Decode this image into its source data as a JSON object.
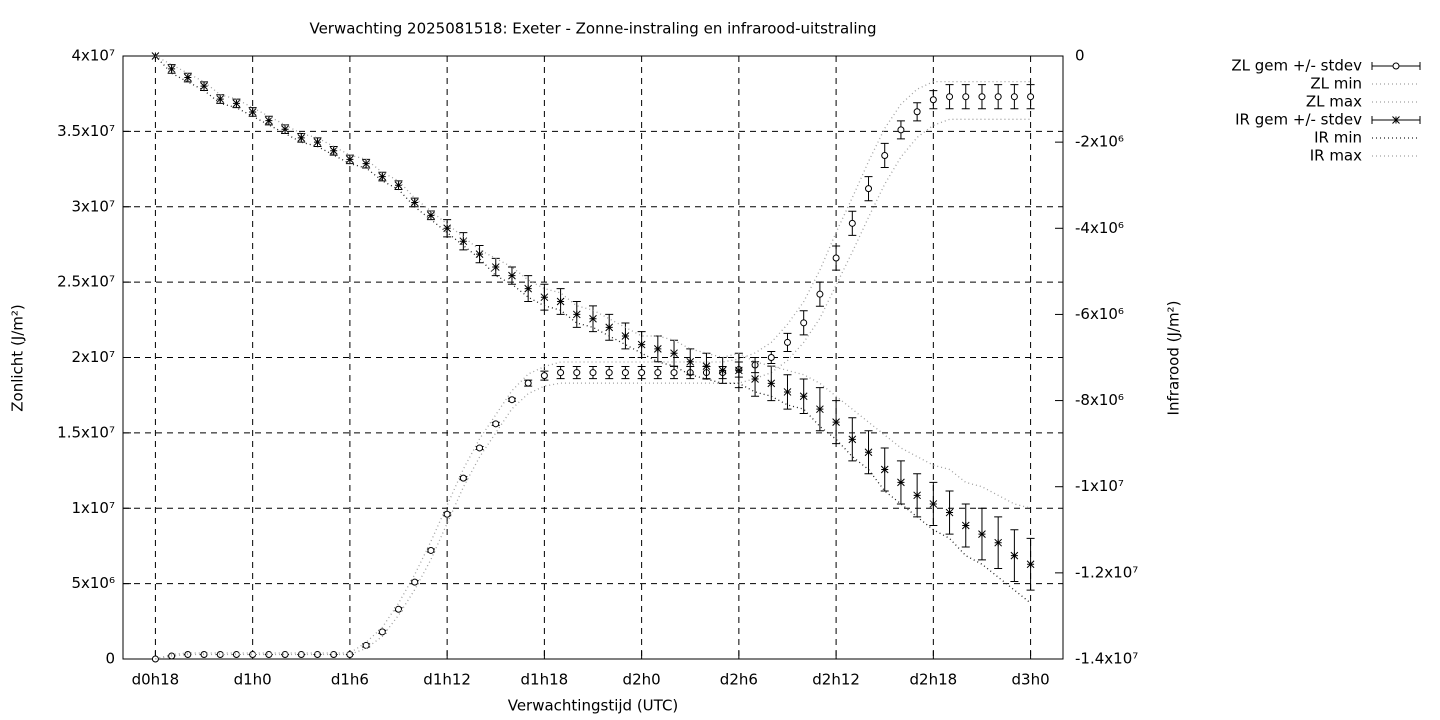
{
  "chart_data": {
    "type": "errorbar",
    "title": "Verwachting 2025081518: Exeter - Zonne-instraling en infrarood-uitstraling",
    "xlabel": "Verwachtingstijd (UTC)",
    "ylabel": "Zonlicht (J/m²)",
    "y2label": "Infrarood (J/m²)",
    "x": [
      0,
      1,
      2,
      3,
      4,
      5,
      6,
      7,
      8,
      9,
      10,
      11,
      12,
      13,
      14,
      15,
      16,
      17,
      18,
      19,
      20,
      21,
      22,
      23,
      24,
      25,
      26,
      27,
      28,
      29,
      30,
      31,
      32,
      33,
      34,
      35,
      36,
      37,
      38,
      39,
      40,
      41,
      42,
      43,
      44,
      45,
      46,
      47,
      48,
      49,
      50,
      51,
      52,
      53,
      54
    ],
    "xlim": [
      -2,
      56
    ],
    "xticks": [
      {
        "value": 0,
        "label": "d0h18"
      },
      {
        "value": 6,
        "label": "d1h0"
      },
      {
        "value": 12,
        "label": "d1h6"
      },
      {
        "value": 18,
        "label": "d1h12"
      },
      {
        "value": 24,
        "label": "d1h18"
      },
      {
        "value": 30,
        "label": "d2h0"
      },
      {
        "value": 36,
        "label": "d2h6"
      },
      {
        "value": 42,
        "label": "d2h12"
      },
      {
        "value": 48,
        "label": "d2h18"
      },
      {
        "value": 54,
        "label": "d3h0"
      }
    ],
    "ylim": [
      0,
      40000000
    ],
    "yticks": [
      0,
      {
        "value": 5000000,
        "label": "5x10⁶"
      },
      {
        "value": 10000000,
        "label": "1x10⁷"
      },
      {
        "value": 15000000,
        "label": "1.5x10⁷"
      },
      {
        "value": 20000000,
        "label": "2x10⁷"
      },
      {
        "value": 25000000,
        "label": "2.5x10⁷"
      },
      {
        "value": 30000000,
        "label": "3x10⁷"
      },
      {
        "value": 35000000,
        "label": "3.5x10⁷"
      },
      {
        "value": 40000000,
        "label": "4x10⁷"
      }
    ],
    "y2lim": [
      -14000000,
      0
    ],
    "y2ticks": [
      {
        "value": -14000000,
        "label": "-1.4x10⁷"
      },
      {
        "value": -12000000,
        "label": "-1.2x10⁷"
      },
      {
        "value": -10000000,
        "label": "-1x10⁷"
      },
      {
        "value": -8000000,
        "label": "-8x10⁶"
      },
      {
        "value": -6000000,
        "label": "-6x10⁶"
      },
      {
        "value": -4000000,
        "label": "-4x10⁶"
      },
      {
        "value": -2000000,
        "label": "-2x10⁶"
      },
      0
    ],
    "grid": true,
    "legend": "outside-top-right",
    "series": [
      {
        "name": "ZL gem +/- stdev",
        "color": "#000000",
        "style": "errorbars",
        "marker": "circle",
        "values": [
          0,
          200000.0,
          300000.0,
          300000.0,
          300000.0,
          300000.0,
          300000.0,
          300000.0,
          300000.0,
          300000.0,
          300000.0,
          300000.0,
          300000.0,
          900000.0,
          1800000.0,
          3300000.0,
          5100000.0,
          7200000.0,
          9600000.0,
          12000000.0,
          14000000.0,
          15600000.0,
          17200000.0,
          18300000.0,
          18800000.0,
          19000000.0,
          19000000.0,
          19000000.0,
          19000000.0,
          19000000.0,
          19000000.0,
          19000000.0,
          19000000.0,
          19000000.0,
          19000000.0,
          19000000.0,
          19200000.0,
          19500000.0,
          20000000.0,
          21000000.0,
          22300000.0,
          24200000.0,
          26600000.0,
          28900000.0,
          31200000.0,
          33400000.0,
          35100000.0,
          36300000.0,
          37100000.0,
          37300000.0,
          37300000.0,
          37300000.0,
          37300000.0,
          37300000.0,
          37300000.0
        ],
        "errors": [
          0,
          0,
          0,
          0,
          0,
          0,
          0,
          0,
          0,
          0,
          0,
          0,
          0,
          100000.0,
          100000.0,
          100000.0,
          100000.0,
          100000.0,
          100000.0,
          100000.0,
          100000.0,
          100000.0,
          100000.0,
          200000.0,
          300000.0,
          400000.0,
          400000.0,
          400000.0,
          400000.0,
          400000.0,
          400000.0,
          400000.0,
          400000.0,
          400000.0,
          400000.0,
          400000.0,
          500000.0,
          500000.0,
          400000.0,
          600000.0,
          800000.0,
          800000.0,
          800000.0,
          800000.0,
          800000.0,
          800000.0,
          600000.0,
          600000.0,
          600000.0,
          800000.0,
          800000.0,
          800000.0,
          800000.0,
          800000.0,
          800000.0
        ]
      },
      {
        "name": "ZL min",
        "color": "#a0a0a0",
        "style": "dotted",
        "values": [
          0,
          200000.0,
          300000.0,
          300000.0,
          300000.0,
          300000.0,
          300000.0,
          300000.0,
          300000.0,
          300000.0,
          300000.0,
          300000.0,
          300000.0,
          700000.0,
          1500000.0,
          2900000.0,
          4600000.0,
          6600000.0,
          9000000.0,
          11400000.0,
          13400000.0,
          15000000.0,
          16600000.0,
          17600000.0,
          18100000.0,
          18300000.0,
          18300000.0,
          18300000.0,
          18300000.0,
          18300000.0,
          18300000.0,
          18300000.0,
          18300000.0,
          18300000.0,
          18300000.0,
          18300000.0,
          18300000.0,
          18600000.0,
          19000000.0,
          19800000.0,
          21000000.0,
          22600000.0,
          24800000.0,
          27000000.0,
          29300000.0,
          31500000.0,
          33300000.0,
          34600000.0,
          35400000.0,
          35800000.0,
          35800000.0,
          35800000.0,
          35800000.0,
          35800000.0,
          35800000.0
        ]
      },
      {
        "name": "ZL max",
        "color": "#a0a0a0",
        "style": "dotted",
        "values": [
          0,
          300000.0,
          400000.0,
          400000.0,
          400000.0,
          400000.0,
          400000.0,
          400000.0,
          400000.0,
          400000.0,
          400000.0,
          400000.0,
          400000.0,
          1100000.0,
          2100000.0,
          3700000.0,
          5600000.0,
          7800000.0,
          10200000.0,
          12600000.0,
          14600000.0,
          16200000.0,
          17800000.0,
          18900000.0,
          19400000.0,
          19700000.0,
          19700000.0,
          19700000.0,
          19700000.0,
          19700000.0,
          19700000.0,
          19700000.0,
          19700000.0,
          19700000.0,
          19700000.0,
          19700000.0,
          19900000.0,
          20300000.0,
          21000000.0,
          22200000.0,
          23700000.0,
          25800000.0,
          28300000.0,
          30600000.0,
          33000000.0,
          35200000.0,
          36800000.0,
          37800000.0,
          38300000.0,
          38300000.0,
          38300000.0,
          38300000.0,
          38300000.0,
          38300000.0,
          38300000.0
        ]
      },
      {
        "name": "IR gem +/- stdev",
        "color": "#000000",
        "style": "errorbars",
        "marker": "asterisk",
        "axis": "y2",
        "values": [
          0,
          -300000.0,
          -500000.0,
          -700000.0,
          -1000000.0,
          -1100000.0,
          -1300000.0,
          -1500000.0,
          -1700000.0,
          -1900000.0,
          -2000000.0,
          -2200000.0,
          -2400000.0,
          -2500000.0,
          -2800000.0,
          -3000000.0,
          -3400000.0,
          -3700000.0,
          -4000000.0,
          -4300000.0,
          -4600000.0,
          -4900000.0,
          -5100000.0,
          -5400000.0,
          -5600000.0,
          -5700000.0,
          -6000000.0,
          -6100000.0,
          -6300000.0,
          -6500000.0,
          -6700000.0,
          -6800000.0,
          -6900000.0,
          -7100000.0,
          -7200000.0,
          -7300000.0,
          -7300000.0,
          -7500000.0,
          -7600000.0,
          -7800000.0,
          -7900000.0,
          -8200000.0,
          -8500000.0,
          -8900000.0,
          -9200000.0,
          -9600000.0,
          -9900000.0,
          -10200000.0,
          -10400000.0,
          -10600000.0,
          -10900000.0,
          -11100000.0,
          -11300000.0,
          -11600000.0,
          -11800000.0
        ],
        "errors": [
          0,
          100000.0,
          100000.0,
          100000.0,
          100000.0,
          100000.0,
          100000.0,
          100000.0,
          100000.0,
          100000.0,
          100000.0,
          100000.0,
          100000.0,
          100000.0,
          100000.0,
          100000.0,
          100000.0,
          100000.0,
          200000.0,
          200000.0,
          200000.0,
          200000.0,
          200000.0,
          300000.0,
          300000.0,
          300000.0,
          300000.0,
          300000.0,
          300000.0,
          300000.0,
          300000.0,
          300000.0,
          300000.0,
          300000.0,
          300000.0,
          300000.0,
          400000.0,
          400000.0,
          400000.0,
          400000.0,
          400000.0,
          500000.0,
          500000.0,
          500000.0,
          500000.0,
          500000.0,
          500000.0,
          500000.0,
          500000.0,
          500000.0,
          500000.0,
          600000.0,
          600000.0,
          600000.0,
          600000.0
        ]
      },
      {
        "name": "IR min",
        "color": "#202020",
        "style": "dotted",
        "values": [
          0,
          -400000.0,
          -600000.0,
          -800000.0,
          -1100000.0,
          -1200000.0,
          -1400000.0,
          -1600000.0,
          -1800000.0,
          -2000000.0,
          -2100000.0,
          -2300000.0,
          -2500000.0,
          -2600000.0,
          -2900000.0,
          -3100000.0,
          -3500000.0,
          -3800000.0,
          -4100000.0,
          -4400000.0,
          -4700000.0,
          -5100000.0,
          -5300000.0,
          -5600000.0,
          -5800000.0,
          -5900000.0,
          -6200000.0,
          -6300000.0,
          -6500000.0,
          -6700000.0,
          -6900000.0,
          -7100000.0,
          -7200000.0,
          -7400000.0,
          -7500000.0,
          -7600000.0,
          -7600000.0,
          -7800000.0,
          -7900000.0,
          -8100000.0,
          -8200000.0,
          -8600000.0,
          -8900000.0,
          -9300000.0,
          -9600000.0,
          -10100000.0,
          -10400000.0,
          -10700000.0,
          -11000000.0,
          -11200000.0,
          -11600000.0,
          -11800000.0,
          -12100000.0,
          -12400000.0,
          -12700000.0
        ],
        "axis": "y2"
      },
      {
        "name": "IR max",
        "color": "#a0a0a0",
        "style": "dotted",
        "values": [
          0,
          -200000.0,
          -400000.0,
          -600000.0,
          -900000.0,
          -1000000.0,
          -1200000.0,
          -1400000.0,
          -1600000.0,
          -1800000.0,
          -1900000.0,
          -2100000.0,
          -2300000.0,
          -2400000.0,
          -2700000.0,
          -2900000.0,
          -3300000.0,
          -3600000.0,
          -3900000.0,
          -4200000.0,
          -4500000.0,
          -4700000.0,
          -4900000.0,
          -5200000.0,
          -5400000.0,
          -5500000.0,
          -5800000.0,
          -5900000.0,
          -6100000.0,
          -6300000.0,
          -6500000.0,
          -6500000.0,
          -6600000.0,
          -6800000.0,
          -6900000.0,
          -7000000.0,
          -6900000.0,
          -7100000.0,
          -7200000.0,
          -7300000.0,
          -7400000.0,
          -7600000.0,
          -7900000.0,
          -8200000.0,
          -8500000.0,
          -8800000.0,
          -9100000.0,
          -9300000.0,
          -9500000.0,
          -9600000.0,
          -9900000.0,
          -10000000.0,
          -10200000.0,
          -10400000.0,
          -10500000.0
        ],
        "axis": "y2"
      }
    ]
  }
}
